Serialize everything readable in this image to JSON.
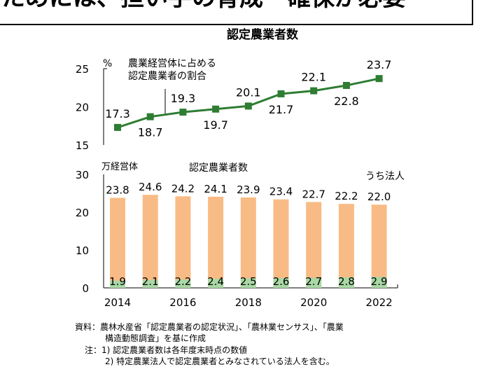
{
  "banner": {
    "text": "ためには、担い手の育成・確保が必要"
  },
  "chart_data": [
    {
      "type": "line",
      "title": "認定農業者数",
      "unit": "%",
      "label": "農業経営体に占める\n認定農業者の割合",
      "x": [
        2014,
        2015,
        2016,
        2017,
        2018,
        2019,
        2020,
        2021,
        2022
      ],
      "values": [
        17.3,
        18.7,
        19.3,
        19.7,
        20.1,
        21.7,
        22.1,
        22.8,
        23.7
      ],
      "ylim": [
        15,
        25
      ],
      "yticks": [
        15,
        20,
        25
      ],
      "color": "#2e7d32"
    },
    {
      "type": "bar",
      "unit": "万経営体",
      "x": [
        2014,
        2015,
        2016,
        2017,
        2018,
        2019,
        2020,
        2021,
        2022
      ],
      "xticks": [
        2014,
        2016,
        2018,
        2020,
        2022
      ],
      "series": [
        {
          "name": "認定農業者数",
          "values": [
            23.8,
            24.6,
            24.2,
            24.1,
            23.9,
            23.4,
            22.7,
            22.2,
            22.0
          ],
          "color": "#f9bb85"
        },
        {
          "name": "うち法人",
          "values": [
            1.9,
            2.1,
            2.2,
            2.4,
            2.5,
            2.6,
            2.7,
            2.8,
            2.9
          ],
          "color": "#a9d8a5"
        }
      ],
      "ylim": [
        0,
        30
      ],
      "yticks": [
        0,
        10,
        20,
        30
      ]
    }
  ],
  "notes": {
    "source1": "資料：農林水産省「認定農業者の認定状況」、「農林業センサス」、「農業",
    "source2": "構造動態調査」を基に作成",
    "note1": "注：1) 認定農業者数は各年度末時点の数値",
    "note2": "2) 特定農業法人で認定農業者とみなされている法人を含む。"
  }
}
